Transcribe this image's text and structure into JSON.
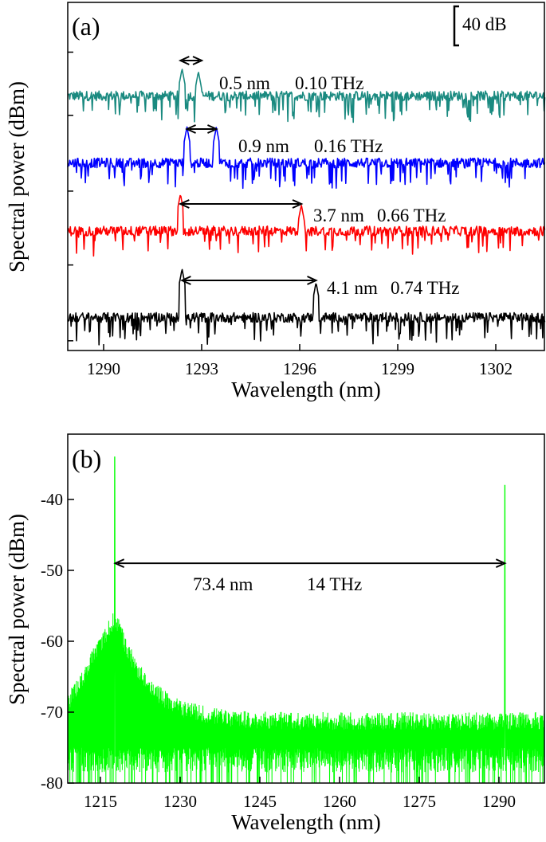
{
  "chart_data": [
    {
      "type": "line",
      "panel_label": "(a)",
      "xlabel": "Wavelength (nm)",
      "ylabel": "Spectral power (dBm)",
      "xlim": [
        1288.9,
        1303.5
      ],
      "xticks": [
        "1290",
        "1293",
        "1296",
        "1299",
        "1302"
      ],
      "y_tick_labels_shown": false,
      "traces_vertically_offset": true,
      "scale_bar": {
        "label": "40 dB",
        "value_db": 40
      },
      "grid": false,
      "series": [
        {
          "color": "#1a8a80",
          "baseline_rel_db": 262,
          "peaks_nm": [
            1292.4,
            1292.9
          ],
          "peak_rel_db": [
            290,
            287
          ],
          "annotation": {
            "spacing": "0.5 nm",
            "frequency": "0.10 THz",
            "arrow_nm": [
              1292.35,
              1293.0
            ]
          }
        },
        {
          "color": "#0000ff",
          "baseline_rel_db": 193,
          "peaks_nm": [
            1292.55,
            1293.45
          ],
          "peak_rel_db": [
            230,
            230
          ],
          "annotation": {
            "spacing": "0.9 nm",
            "frequency": "0.16 THz",
            "arrow_nm": [
              1292.55,
              1293.45
            ]
          }
        },
        {
          "color": "#ff0000",
          "baseline_rel_db": 123,
          "peaks_nm": [
            1292.35,
            1296.05
          ],
          "peak_rel_db": [
            161,
            150
          ],
          "annotation": {
            "spacing": "3.7 nm",
            "frequency": "0.66 THz",
            "arrow_nm": [
              1292.35,
              1296.05
            ]
          }
        },
        {
          "color": "#000000",
          "baseline_rel_db": 34,
          "peaks_nm": [
            1292.4,
            1296.5
          ],
          "peak_rel_db": [
            84,
            70
          ],
          "annotation": {
            "spacing": "4.1 nm",
            "frequency": "0.74 THz",
            "arrow_nm": [
              1292.4,
              1296.5
            ]
          }
        }
      ]
    },
    {
      "type": "line",
      "panel_label": "(b)",
      "xlabel": "Wavelength (nm)",
      "ylabel": "Spectral power (dBm)",
      "xlim": [
        1208.9,
        1298.5
      ],
      "ylim": [
        -80,
        -31
      ],
      "xticks": [
        "1215",
        "1230",
        "1245",
        "1260",
        "1275",
        "1290"
      ],
      "yticks": [
        "-40",
        "-50",
        "-60",
        "-70",
        "-80"
      ],
      "grid": false,
      "series": [
        {
          "color": "#00ff00",
          "peaks_nm": [
            1217.7,
            1291.1
          ],
          "peak_dbm": [
            -34,
            -38
          ],
          "noise_floor_dbm": [
            -80,
            -70
          ]
        }
      ],
      "annotation": {
        "spacing": "73.4 nm",
        "frequency": "14 THz",
        "arrow_nm": [
          1217.8,
          1291.1
        ],
        "arrow_dbm": -49
      }
    }
  ]
}
